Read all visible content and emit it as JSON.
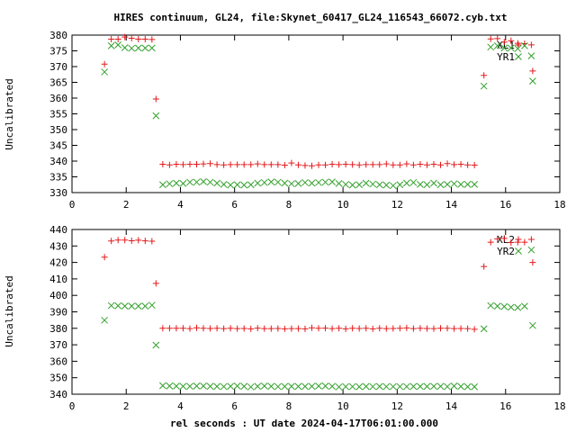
{
  "title": "HIRES continuum, GL24, file:Skynet_60417_GL24_116543_66072.cyb.txt",
  "xlabel": "rel seconds : UT date 2024-04-17T06:01:00.000",
  "colors": {
    "plus_series": "#e41a1c",
    "x_series": "#33a02c",
    "axis": "#000000"
  },
  "chart_data": [
    {
      "type": "scatter",
      "ylabel": "Uncalibrated",
      "xlim": [
        0,
        18
      ],
      "ylim": [
        330,
        380
      ],
      "xticks": [
        0,
        2,
        4,
        6,
        8,
        10,
        12,
        14,
        16,
        18
      ],
      "yticks": [
        330,
        335,
        340,
        345,
        350,
        355,
        360,
        365,
        370,
        375,
        380
      ],
      "legend_position": "top-right",
      "series": [
        {
          "name": "XL1",
          "marker": "plus",
          "color": "#e41a1c",
          "points": [
            [
              1.2,
              370.8
            ],
            [
              1.45,
              378.7
            ],
            [
              1.7,
              378.7
            ],
            [
              1.95,
              379.4
            ],
            [
              2.2,
              379.0
            ],
            [
              2.45,
              378.7
            ],
            [
              2.7,
              378.7
            ],
            [
              2.95,
              378.6
            ],
            [
              3.1,
              359.7
            ],
            [
              3.35,
              339.0
            ],
            [
              3.6,
              338.8
            ],
            [
              3.85,
              339.0
            ],
            [
              4.1,
              338.9
            ],
            [
              4.35,
              339.0
            ],
            [
              4.6,
              339.0
            ],
            [
              4.85,
              339.1
            ],
            [
              5.1,
              339.2
            ],
            [
              5.35,
              338.9
            ],
            [
              5.6,
              338.8
            ],
            [
              5.85,
              338.9
            ],
            [
              6.1,
              338.9
            ],
            [
              6.35,
              338.9
            ],
            [
              6.6,
              338.9
            ],
            [
              6.85,
              339.1
            ],
            [
              7.1,
              338.9
            ],
            [
              7.35,
              338.9
            ],
            [
              7.6,
              338.9
            ],
            [
              7.85,
              338.7
            ],
            [
              8.1,
              339.4
            ],
            [
              8.35,
              338.8
            ],
            [
              8.6,
              338.6
            ],
            [
              8.85,
              338.5
            ],
            [
              9.1,
              338.8
            ],
            [
              9.35,
              338.8
            ],
            [
              9.6,
              339.0
            ],
            [
              9.85,
              338.9
            ],
            [
              10.1,
              339.0
            ],
            [
              10.35,
              338.9
            ],
            [
              10.6,
              338.8
            ],
            [
              10.85,
              338.9
            ],
            [
              11.1,
              338.9
            ],
            [
              11.35,
              338.9
            ],
            [
              11.6,
              339.1
            ],
            [
              11.85,
              338.8
            ],
            [
              12.1,
              338.8
            ],
            [
              12.35,
              339.1
            ],
            [
              12.6,
              338.8
            ],
            [
              12.85,
              339.0
            ],
            [
              13.1,
              338.8
            ],
            [
              13.35,
              339.0
            ],
            [
              13.6,
              338.8
            ],
            [
              13.85,
              339.2
            ],
            [
              14.1,
              338.9
            ],
            [
              14.35,
              339.0
            ],
            [
              14.6,
              338.8
            ],
            [
              14.85,
              338.7
            ],
            [
              15.2,
              367.2
            ],
            [
              15.45,
              378.8
            ],
            [
              15.7,
              378.9
            ],
            [
              15.95,
              377.8
            ],
            [
              16.2,
              378.2
            ],
            [
              16.45,
              377.4
            ],
            [
              16.7,
              377.3
            ],
            [
              16.95,
              376.9
            ],
            [
              17.0,
              368.6
            ]
          ]
        },
        {
          "name": "YR1",
          "marker": "cross",
          "color": "#33a02c",
          "points": [
            [
              1.2,
              368.3
            ],
            [
              1.45,
              376.6
            ],
            [
              1.7,
              376.9
            ],
            [
              1.95,
              376.0
            ],
            [
              2.2,
              375.8
            ],
            [
              2.45,
              375.9
            ],
            [
              2.7,
              375.9
            ],
            [
              2.95,
              375.9
            ],
            [
              3.1,
              354.4
            ],
            [
              3.35,
              332.5
            ],
            [
              3.6,
              332.8
            ],
            [
              3.85,
              333.0
            ],
            [
              4.1,
              332.9
            ],
            [
              4.35,
              333.3
            ],
            [
              4.6,
              333.3
            ],
            [
              4.85,
              333.5
            ],
            [
              5.1,
              333.3
            ],
            [
              5.35,
              333.0
            ],
            [
              5.6,
              332.6
            ],
            [
              5.85,
              332.4
            ],
            [
              6.1,
              332.5
            ],
            [
              6.35,
              332.4
            ],
            [
              6.6,
              332.5
            ],
            [
              6.85,
              333.0
            ],
            [
              7.1,
              333.2
            ],
            [
              7.35,
              333.4
            ],
            [
              7.6,
              333.3
            ],
            [
              7.85,
              333.0
            ],
            [
              8.1,
              332.8
            ],
            [
              8.35,
              332.9
            ],
            [
              8.6,
              333.2
            ],
            [
              8.85,
              333.0
            ],
            [
              9.1,
              333.2
            ],
            [
              9.35,
              333.3
            ],
            [
              9.6,
              333.4
            ],
            [
              9.85,
              332.9
            ],
            [
              10.1,
              332.6
            ],
            [
              10.35,
              332.4
            ],
            [
              10.6,
              332.5
            ],
            [
              10.85,
              333.0
            ],
            [
              11.1,
              332.7
            ],
            [
              11.35,
              332.5
            ],
            [
              11.6,
              332.4
            ],
            [
              11.85,
              332.2
            ],
            [
              12.1,
              332.5
            ],
            [
              12.35,
              333.0
            ],
            [
              12.6,
              333.2
            ],
            [
              12.85,
              332.6
            ],
            [
              13.1,
              332.5
            ],
            [
              13.35,
              333.0
            ],
            [
              13.6,
              332.5
            ],
            [
              13.85,
              332.6
            ],
            [
              14.1,
              332.8
            ],
            [
              14.35,
              332.6
            ],
            [
              14.6,
              332.6
            ],
            [
              14.85,
              332.6
            ],
            [
              15.2,
              363.8
            ],
            [
              15.45,
              376.2
            ],
            [
              15.7,
              376.6
            ],
            [
              15.95,
              375.9
            ],
            [
              16.2,
              375.9
            ],
            [
              16.45,
              375.7
            ],
            [
              16.7,
              376.6
            ],
            [
              16.95,
              373.4
            ],
            [
              17.0,
              365.4
            ]
          ]
        }
      ]
    },
    {
      "type": "scatter",
      "ylabel": "Uncalibrated",
      "xlim": [
        0,
        18
      ],
      "ylim": [
        340,
        440
      ],
      "xticks": [
        0,
        2,
        4,
        6,
        8,
        10,
        12,
        14,
        16,
        18
      ],
      "yticks": [
        340,
        350,
        360,
        370,
        380,
        390,
        400,
        410,
        420,
        430,
        440
      ],
      "legend_position": "top-right",
      "series": [
        {
          "name": "XL2",
          "marker": "plus",
          "color": "#e41a1c",
          "points": [
            [
              1.2,
              423.2
            ],
            [
              1.45,
              433.0
            ],
            [
              1.7,
              433.6
            ],
            [
              1.95,
              433.6
            ],
            [
              2.2,
              433.2
            ],
            [
              2.45,
              433.5
            ],
            [
              2.7,
              433.1
            ],
            [
              2.95,
              432.9
            ],
            [
              3.1,
              407.3
            ],
            [
              3.35,
              380.0
            ],
            [
              3.6,
              380.0
            ],
            [
              3.85,
              380.0
            ],
            [
              4.1,
              380.0
            ],
            [
              4.35,
              379.8
            ],
            [
              4.6,
              380.3
            ],
            [
              4.85,
              380.0
            ],
            [
              5.1,
              379.9
            ],
            [
              5.35,
              380.0
            ],
            [
              5.6,
              379.8
            ],
            [
              5.85,
              380.0
            ],
            [
              6.1,
              379.8
            ],
            [
              6.35,
              379.9
            ],
            [
              6.6,
              379.7
            ],
            [
              6.85,
              380.1
            ],
            [
              7.1,
              379.8
            ],
            [
              7.35,
              379.8
            ],
            [
              7.6,
              379.9
            ],
            [
              7.85,
              379.7
            ],
            [
              8.1,
              379.8
            ],
            [
              8.35,
              379.8
            ],
            [
              8.6,
              379.7
            ],
            [
              8.85,
              380.3
            ],
            [
              9.1,
              380.0
            ],
            [
              9.35,
              380.1
            ],
            [
              9.6,
              379.8
            ],
            [
              9.85,
              380.0
            ],
            [
              10.1,
              379.7
            ],
            [
              10.35,
              380.0
            ],
            [
              10.6,
              379.9
            ],
            [
              10.85,
              380.0
            ],
            [
              11.1,
              379.7
            ],
            [
              11.35,
              380.0
            ],
            [
              11.6,
              379.8
            ],
            [
              11.85,
              379.9
            ],
            [
              12.1,
              380.0
            ],
            [
              12.35,
              380.2
            ],
            [
              12.6,
              379.8
            ],
            [
              12.85,
              380.0
            ],
            [
              13.1,
              379.9
            ],
            [
              13.35,
              379.8
            ],
            [
              13.6,
              380.0
            ],
            [
              13.85,
              380.0
            ],
            [
              14.1,
              379.8
            ],
            [
              14.35,
              379.9
            ],
            [
              14.6,
              379.8
            ],
            [
              14.85,
              379.4
            ],
            [
              15.2,
              417.5
            ],
            [
              15.45,
              432.3
            ],
            [
              15.7,
              434.3
            ],
            [
              15.95,
              434.6
            ],
            [
              16.2,
              432.1
            ],
            [
              16.45,
              432.3
            ],
            [
              16.7,
              432.3
            ],
            [
              16.95,
              434.0
            ],
            [
              17.0,
              420.0
            ]
          ]
        },
        {
          "name": "YR2",
          "marker": "cross",
          "color": "#33a02c",
          "points": [
            [
              1.2,
              384.9
            ],
            [
              1.45,
              393.8
            ],
            [
              1.7,
              393.7
            ],
            [
              1.95,
              393.5
            ],
            [
              2.2,
              393.5
            ],
            [
              2.45,
              393.5
            ],
            [
              2.7,
              393.5
            ],
            [
              2.95,
              394.0
            ],
            [
              3.1,
              369.8
            ],
            [
              3.35,
              345.2
            ],
            [
              3.6,
              345.0
            ],
            [
              3.85,
              344.9
            ],
            [
              4.1,
              344.8
            ],
            [
              4.35,
              344.8
            ],
            [
              4.6,
              345.0
            ],
            [
              4.85,
              345.0
            ],
            [
              5.1,
              344.8
            ],
            [
              5.35,
              344.7
            ],
            [
              5.6,
              344.6
            ],
            [
              5.85,
              344.8
            ],
            [
              6.1,
              345.0
            ],
            [
              6.35,
              344.8
            ],
            [
              6.6,
              344.4
            ],
            [
              6.85,
              344.8
            ],
            [
              7.1,
              345.0
            ],
            [
              7.35,
              344.8
            ],
            [
              7.6,
              344.6
            ],
            [
              7.85,
              344.7
            ],
            [
              8.1,
              344.8
            ],
            [
              8.35,
              344.7
            ],
            [
              8.6,
              344.7
            ],
            [
              8.85,
              344.8
            ],
            [
              9.1,
              345.0
            ],
            [
              9.35,
              345.0
            ],
            [
              9.6,
              344.8
            ],
            [
              9.85,
              344.4
            ],
            [
              10.1,
              344.6
            ],
            [
              10.35,
              344.6
            ],
            [
              10.6,
              344.5
            ],
            [
              10.85,
              344.7
            ],
            [
              11.1,
              344.6
            ],
            [
              11.35,
              344.7
            ],
            [
              11.6,
              344.6
            ],
            [
              11.85,
              344.6
            ],
            [
              12.1,
              344.6
            ],
            [
              12.35,
              344.6
            ],
            [
              12.6,
              344.7
            ],
            [
              12.85,
              344.7
            ],
            [
              13.1,
              344.7
            ],
            [
              13.35,
              344.8
            ],
            [
              13.6,
              344.8
            ],
            [
              13.85,
              344.6
            ],
            [
              14.1,
              345.0
            ],
            [
              14.35,
              344.7
            ],
            [
              14.6,
              344.5
            ],
            [
              14.85,
              344.5
            ],
            [
              15.2,
              379.7
            ],
            [
              15.45,
              393.8
            ],
            [
              15.7,
              393.5
            ],
            [
              15.95,
              393.2
            ],
            [
              16.2,
              392.8
            ],
            [
              16.45,
              392.6
            ],
            [
              16.7,
              393.4
            ],
            [
              16.95,
              427.6
            ],
            [
              17.0,
              381.7
            ]
          ]
        }
      ]
    }
  ]
}
